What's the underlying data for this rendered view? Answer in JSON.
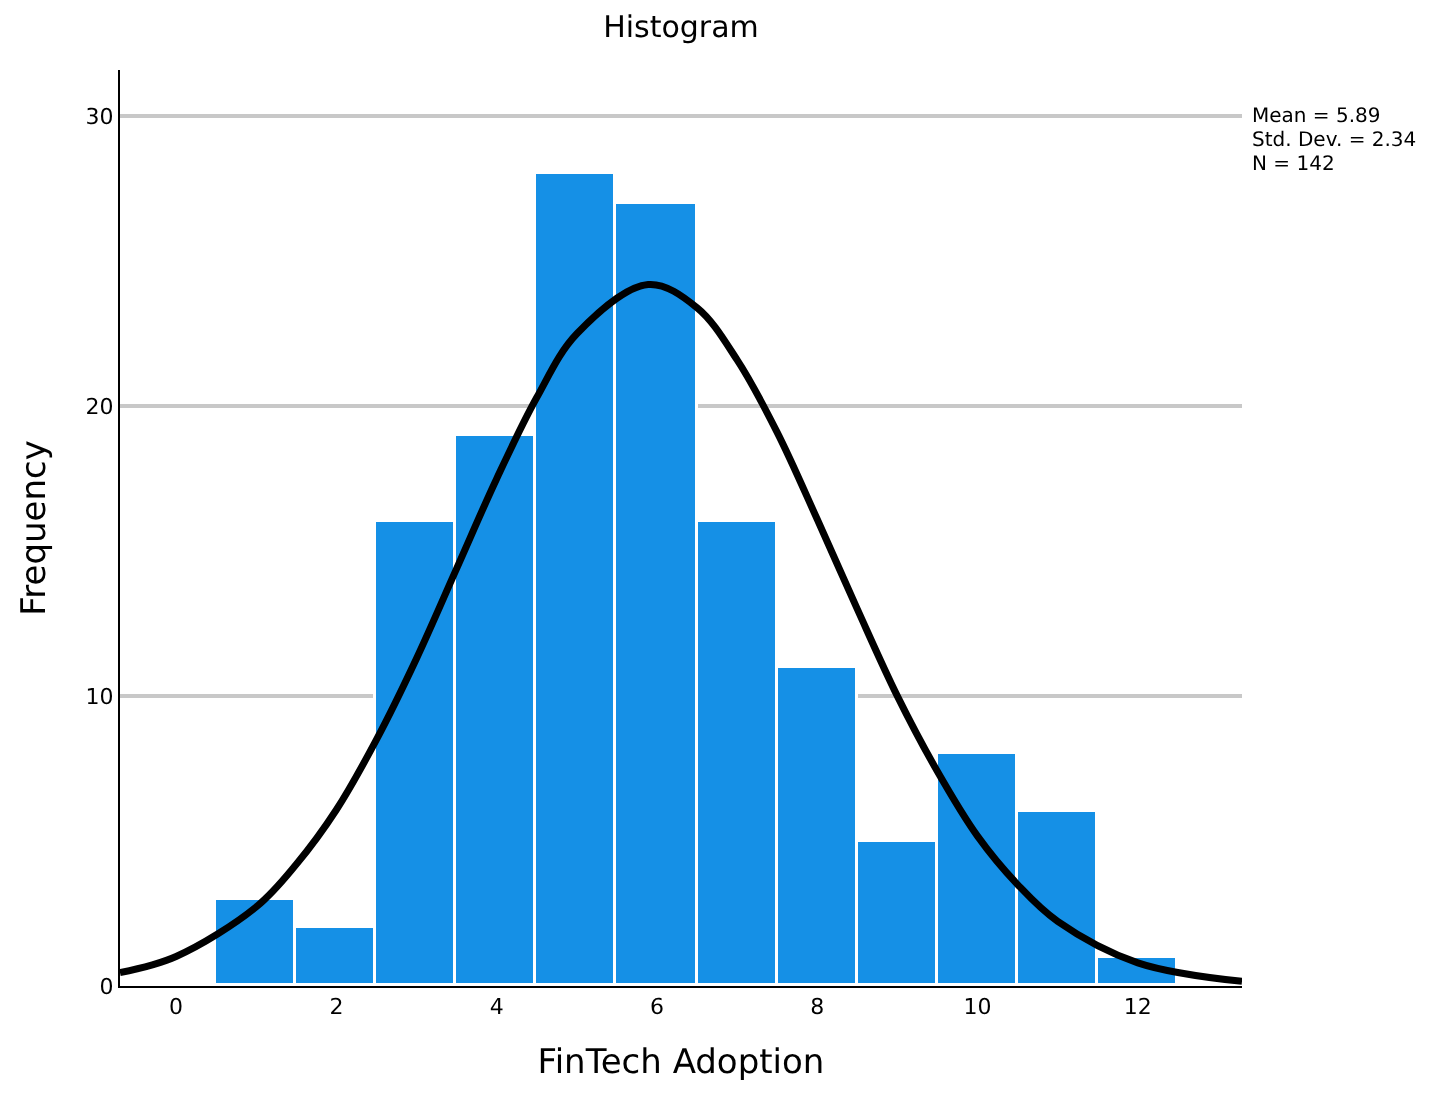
{
  "chart_data": {
    "type": "histogram",
    "title": "Histogram",
    "xlabel": "FinTech Adoption",
    "ylabel": "Frequency",
    "bins": [
      0.5,
      1.5,
      2.5,
      3.5,
      4.5,
      5.5,
      6.5,
      7.5,
      8.5,
      9.5,
      10.5,
      11.5,
      12.5
    ],
    "values": [
      3,
      2,
      16,
      19,
      28,
      27,
      16,
      11,
      5,
      8,
      6,
      1
    ],
    "color": "#1590e6",
    "series": [
      {
        "type": "line",
        "color": "#000000",
        "x": [
          -0.7,
          0,
          1,
          1.5,
          2,
          2.5,
          3,
          3.5,
          4,
          4.5,
          5,
          5.89,
          6.5,
          7,
          7.5,
          8,
          8.5,
          9,
          9.5,
          10,
          10.5,
          11,
          12,
          13.3
        ],
        "values": [
          0.46,
          1.02,
          2.73,
          4.2,
          6.08,
          8.5,
          11.3,
          14.4,
          17.5,
          20.3,
          22.5,
          24.2,
          23.4,
          21.6,
          19.1,
          16.1,
          13.0,
          10.0,
          7.4,
          5.17,
          3.5,
          2.23,
          0.8,
          0.16
        ]
      }
    ],
    "annotations": [
      "Mean = 5.89",
      "Std. Dev. = 2.34",
      "N = 142"
    ],
    "xlim": [
      -0.7,
      13.3
    ],
    "xticks": [
      0,
      2,
      4,
      6,
      8,
      10,
      12
    ],
    "ylim": [
      0,
      31.6
    ],
    "yticks": [
      0,
      10,
      20,
      30
    ],
    "grid": "y",
    "marker": "none",
    "line_style": "solid"
  }
}
